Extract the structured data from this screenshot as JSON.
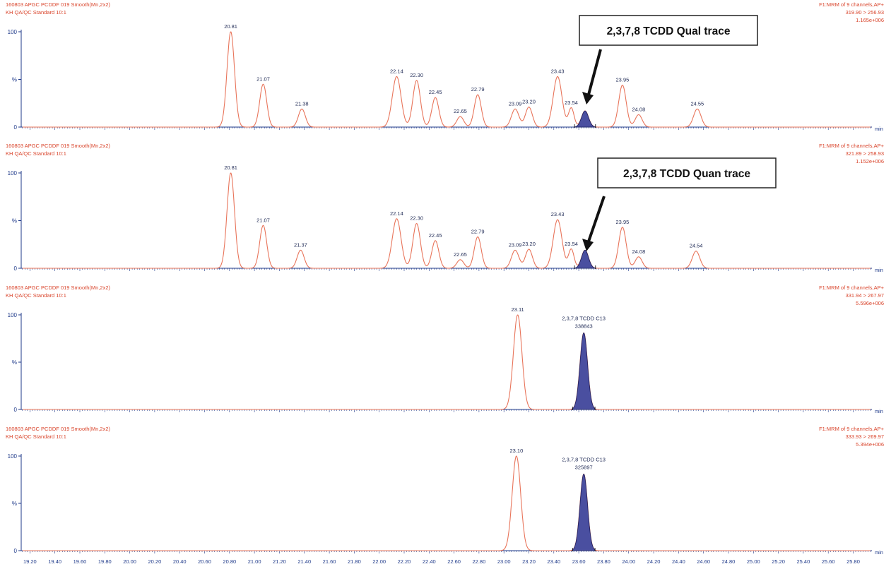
{
  "theme": {
    "trace_color": "#e8745a",
    "header_color": "#d9442b",
    "axis_color": "#1f3a8a",
    "fill_color": "#4a4fa0",
    "fill_edge": "#1f2260",
    "callout_border": "#222222",
    "arrow_color": "#111111"
  },
  "axis": {
    "unit": "min",
    "ticks": [
      "19.20",
      "19.40",
      "19.60",
      "19.80",
      "20.00",
      "20.20",
      "20.40",
      "20.60",
      "20.80",
      "21.00",
      "21.20",
      "21.40",
      "21.60",
      "21.80",
      "22.00",
      "22.20",
      "22.40",
      "22.60",
      "22.80",
      "23.00",
      "23.20",
      "23.40",
      "23.60",
      "23.80",
      "24.00",
      "24.20",
      "24.40",
      "24.60",
      "24.80",
      "25.00",
      "25.20",
      "25.40",
      "25.60",
      "25.80"
    ],
    "y_ticks": [
      "100",
      "%",
      "0"
    ]
  },
  "chart_data": [
    {
      "type": "line",
      "header_left": [
        "160803 APGC PCDDF 019 Smooth(Mn,2x2)",
        "KH QA/QC Standard 10:1"
      ],
      "header_right": [
        "F1:MRM of 9 channels,AP+",
        "319.90 > 256.93",
        "1.165e+006"
      ],
      "xlim": [
        19.13,
        25.95
      ],
      "ylim": [
        0,
        100
      ],
      "peaks": [
        {
          "rt": 20.81,
          "h": 100,
          "w": 0.03,
          "label": "20.81"
        },
        {
          "rt": 21.07,
          "h": 45,
          "w": 0.028,
          "label": "21.07"
        },
        {
          "rt": 21.38,
          "h": 19,
          "w": 0.028,
          "label": "21.38"
        },
        {
          "rt": 22.14,
          "h": 53,
          "w": 0.035,
          "label": "22.14"
        },
        {
          "rt": 22.3,
          "h": 49,
          "w": 0.03,
          "label": "22.30"
        },
        {
          "rt": 22.45,
          "h": 31,
          "w": 0.028,
          "label": "22.45"
        },
        {
          "rt": 22.65,
          "h": 11,
          "w": 0.028,
          "label": "22.65"
        },
        {
          "rt": 22.79,
          "h": 34,
          "w": 0.028,
          "label": "22.79"
        },
        {
          "rt": 23.09,
          "h": 19,
          "w": 0.03,
          "label": "23.09"
        },
        {
          "rt": 23.2,
          "h": 21,
          "w": 0.028,
          "label": "23.20"
        },
        {
          "rt": 23.43,
          "h": 53,
          "w": 0.035,
          "label": "23.43"
        },
        {
          "rt": 23.54,
          "h": 20,
          "w": 0.022,
          "label": "23.54"
        },
        {
          "rt": 23.65,
          "h": 17,
          "w": 0.028,
          "label": "",
          "filled": true
        },
        {
          "rt": 23.95,
          "h": 44,
          "w": 0.03,
          "label": "23.95"
        },
        {
          "rt": 24.08,
          "h": 13,
          "w": 0.028,
          "label": "24.08"
        },
        {
          "rt": 24.55,
          "h": 19,
          "w": 0.03,
          "label": "24.55"
        }
      ],
      "callout": {
        "text": "2,3,7,8 TCDD Qual trace"
      }
    },
    {
      "type": "line",
      "header_left": [
        "160803 APGC PCDDF 019 Smooth(Mn,2x2)",
        "KH QA/QC Standard 10:1"
      ],
      "header_right": [
        "F1:MRM of 9 channels,AP+",
        "321.89 > 258.93",
        "1.152e+006"
      ],
      "xlim": [
        19.13,
        25.95
      ],
      "ylim": [
        0,
        100
      ],
      "peaks": [
        {
          "rt": 20.81,
          "h": 100,
          "w": 0.03,
          "label": "20.81"
        },
        {
          "rt": 21.07,
          "h": 45,
          "w": 0.028,
          "label": "21.07"
        },
        {
          "rt": 21.37,
          "h": 19,
          "w": 0.028,
          "label": "21.37"
        },
        {
          "rt": 22.14,
          "h": 52,
          "w": 0.035,
          "label": "22.14"
        },
        {
          "rt": 22.3,
          "h": 47,
          "w": 0.03,
          "label": "22.30"
        },
        {
          "rt": 22.45,
          "h": 29,
          "w": 0.028,
          "label": "22.45"
        },
        {
          "rt": 22.65,
          "h": 9,
          "w": 0.028,
          "label": "22.65"
        },
        {
          "rt": 22.79,
          "h": 33,
          "w": 0.028,
          "label": "22.79"
        },
        {
          "rt": 23.09,
          "h": 19,
          "w": 0.03,
          "label": "23.09"
        },
        {
          "rt": 23.2,
          "h": 20,
          "w": 0.028,
          "label": "23.20"
        },
        {
          "rt": 23.43,
          "h": 51,
          "w": 0.035,
          "label": "23.43"
        },
        {
          "rt": 23.54,
          "h": 20,
          "w": 0.022,
          "label": "23.54"
        },
        {
          "rt": 23.65,
          "h": 19,
          "w": 0.028,
          "label": "",
          "filled": true
        },
        {
          "rt": 23.95,
          "h": 43,
          "w": 0.03,
          "label": "23.95"
        },
        {
          "rt": 24.08,
          "h": 12,
          "w": 0.028,
          "label": "24.08"
        },
        {
          "rt": 24.54,
          "h": 18,
          "w": 0.03,
          "label": "24.54"
        }
      ],
      "callout": {
        "text": "2,3,7,8 TCDD Quan trace"
      }
    },
    {
      "type": "line",
      "header_left": [
        "160803 APGC PCDDF 019 Smooth(Mn,2x2)",
        "KH QA/QC Standard 10:1"
      ],
      "header_right": [
        "F1:MRM of 9 channels,AP+",
        "331.94 > 267.97",
        "5.596e+006"
      ],
      "xlim": [
        19.13,
        25.95
      ],
      "ylim": [
        0,
        100
      ],
      "peaks": [
        {
          "rt": 23.11,
          "h": 100,
          "w": 0.034,
          "label": "23.11"
        },
        {
          "rt": 23.64,
          "h": 81,
          "w": 0.03,
          "label": "2,3,7,8 TCDD C13",
          "label2": "338843",
          "filled": true
        }
      ]
    },
    {
      "type": "line",
      "header_left": [
        "160803 APGC PCDDF 019 Smooth(Mn,2x2)",
        "KH QA/QC Standard 10:1"
      ],
      "header_right": [
        "F1:MRM of 9 channels,AP+",
        "333.93 > 269.97",
        "5.394e+006"
      ],
      "xlim": [
        19.13,
        25.95
      ],
      "ylim": [
        0,
        100
      ],
      "peaks": [
        {
          "rt": 23.1,
          "h": 100,
          "w": 0.034,
          "label": "23.10"
        },
        {
          "rt": 23.64,
          "h": 81,
          "w": 0.03,
          "label": "2,3,7,8 TCDD C13",
          "label2": "325897",
          "filled": true
        }
      ]
    }
  ]
}
